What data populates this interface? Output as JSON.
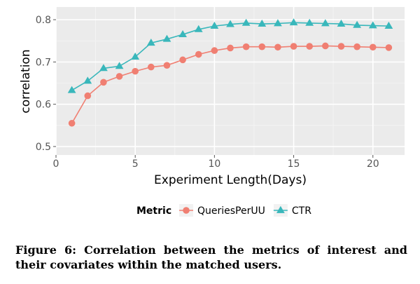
{
  "chart_data": {
    "type": "line",
    "xlabel": "Experiment Length(Days)",
    "ylabel": "correlation",
    "xlim": [
      0,
      22
    ],
    "ylim": [
      0.48,
      0.83
    ],
    "xticks": [
      0,
      5,
      10,
      15,
      20
    ],
    "yticks": [
      0.5,
      0.6,
      0.7,
      0.8
    ],
    "xtick_labels": [
      "0",
      "5",
      "10",
      "15",
      "20"
    ],
    "ytick_labels": [
      "0.5",
      "0.6",
      "0.7",
      "0.8"
    ],
    "grid": true,
    "legend": {
      "title": "Metric",
      "placement": "bottom"
    },
    "x": [
      1,
      2,
      3,
      4,
      5,
      6,
      7,
      8,
      9,
      10,
      11,
      12,
      13,
      14,
      15,
      16,
      17,
      18,
      19,
      20,
      21
    ],
    "series": [
      {
        "name": "QueriesPerUU",
        "color": "#F07F72",
        "marker": "circle",
        "values": [
          0.555,
          0.62,
          0.652,
          0.666,
          0.678,
          0.688,
          0.692,
          0.705,
          0.718,
          0.727,
          0.733,
          0.736,
          0.736,
          0.735,
          0.737,
          0.737,
          0.738,
          0.737,
          0.736,
          0.735,
          0.734
        ]
      },
      {
        "name": "CTR",
        "color": "#39B7BB",
        "marker": "triangle",
        "values": [
          0.633,
          0.655,
          0.685,
          0.69,
          0.712,
          0.745,
          0.754,
          0.765,
          0.777,
          0.785,
          0.789,
          0.792,
          0.79,
          0.791,
          0.793,
          0.792,
          0.791,
          0.79,
          0.787,
          0.786,
          0.785
        ]
      }
    ]
  },
  "caption": "Figure 6: Correlation between the metrics of interest and their covariates within the matched users."
}
